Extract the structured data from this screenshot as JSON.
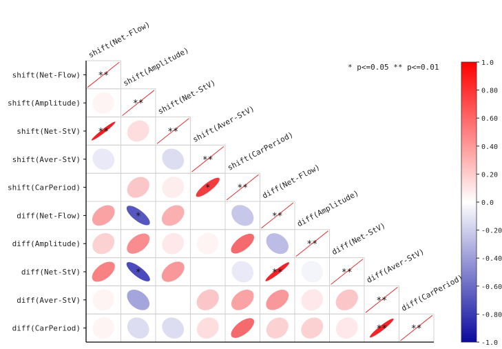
{
  "chart_data": {
    "type": "heatmap",
    "style": "lower-triangle ellipse correlation matrix",
    "variables": [
      "shift(Net-Flow)",
      "shift(Amplitude)",
      "shift(Net-StV)",
      "shift(Aver-StV)",
      "shift(CarPeriod)",
      "diff(Net-Flow)",
      "diff(Amplitude)",
      "diff(Net-StV)",
      "diff(Aver-StV)",
      "diff(CarPeriod)"
    ],
    "correlations": [
      [
        1.0
      ],
      [
        0.05,
        1.0
      ],
      [
        0.97,
        0.15,
        1.0
      ],
      [
        -0.1,
        0.0,
        -0.15,
        1.0
      ],
      [
        0.0,
        0.25,
        0.08,
        0.85,
        1.0
      ],
      [
        0.4,
        -0.75,
        0.35,
        0.0,
        -0.25,
        1.0
      ],
      [
        0.2,
        0.5,
        0.1,
        0.05,
        0.65,
        -0.3,
        1.0
      ],
      [
        0.55,
        -0.8,
        0.45,
        0.0,
        -0.1,
        0.95,
        -0.05,
        1.0
      ],
      [
        0.05,
        -0.4,
        0.0,
        0.25,
        0.4,
        0.45,
        0.1,
        0.25,
        1.0
      ],
      [
        0.05,
        -0.15,
        -0.15,
        0.15,
        0.65,
        0.2,
        0.2,
        0.1,
        0.95,
        1.0
      ]
    ],
    "significance": [
      [
        "**"
      ],
      [
        "",
        "**"
      ],
      [
        "**",
        "",
        "**"
      ],
      [
        "",
        "",
        "",
        "**"
      ],
      [
        "",
        "",
        "",
        "*",
        "**"
      ],
      [
        "",
        "*",
        "",
        "",
        "",
        "**"
      ],
      [
        "",
        "",
        "",
        "",
        "",
        "",
        "**"
      ],
      [
        "",
        "*",
        "",
        "",
        "",
        "**",
        "",
        "**"
      ],
      [
        "",
        "",
        "",
        "",
        "",
        "",
        "",
        "",
        "**"
      ],
      [
        "",
        "",
        "",
        "",
        "",
        "",
        "",
        "",
        "**",
        "**"
      ]
    ],
    "legend_note": "* p<=0.05  ** p<=0.01",
    "colorbar": {
      "range": [
        -1.0,
        1.0
      ],
      "tick_labels": [
        "1.0",
        "0.80",
        "0.60",
        "0.40",
        "0.20",
        "0.0",
        "-0.20",
        "-0.40",
        "-0.60",
        "-0.80",
        "-1.0"
      ],
      "colors": {
        "negative": "#1a1aa6",
        "zero": "#ffffff",
        "positive": "#ff0000"
      }
    }
  }
}
